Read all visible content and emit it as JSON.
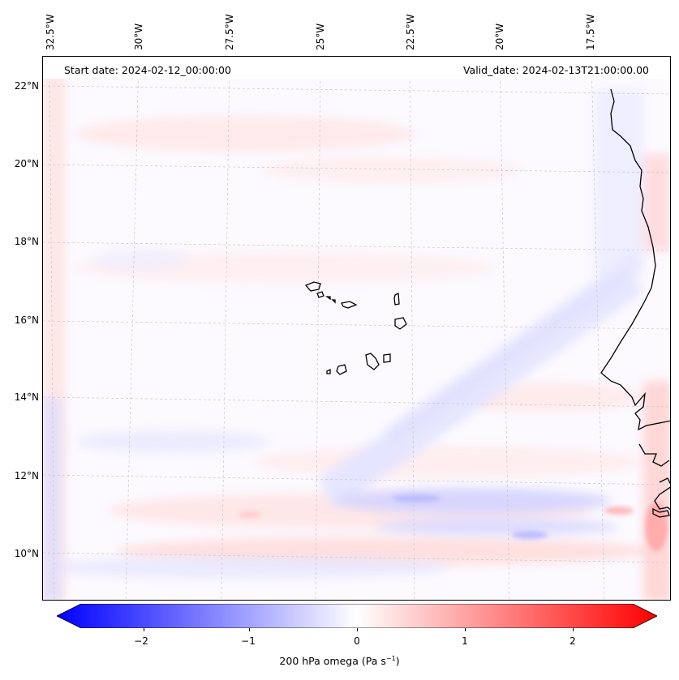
{
  "map": {
    "start_date": "Start date: 2024-02-12_00:00:00",
    "valid_date": "Valid_date: 2024-02-13T21:00:00.00",
    "lon_labels": [
      "32.5°W",
      "30°W",
      "27.5°W",
      "25°W",
      "22.5°W",
      "20°W",
      "17.5°W"
    ],
    "lat_labels": [
      "22°N",
      "20°N",
      "18°N",
      "16°N",
      "14°N",
      "12°N",
      "10°N"
    ],
    "variable": "200 hPa omega",
    "units": "(Pa s",
    "units_sup": "−1",
    "units_close": ")",
    "colormap": "bwr",
    "value_range": [
      -2.7,
      2.7
    ],
    "colors": {
      "negative": "#0000ff",
      "zero": "#ffffff",
      "positive": "#ff0000",
      "coast": "#000000",
      "grid": "#bbbbbb"
    }
  },
  "colorbar": {
    "ticks": [
      "−2",
      "−1",
      "0",
      "1",
      "2"
    ],
    "tick_values": [
      -2,
      -1,
      0,
      1,
      2
    ],
    "extend": "both"
  }
}
